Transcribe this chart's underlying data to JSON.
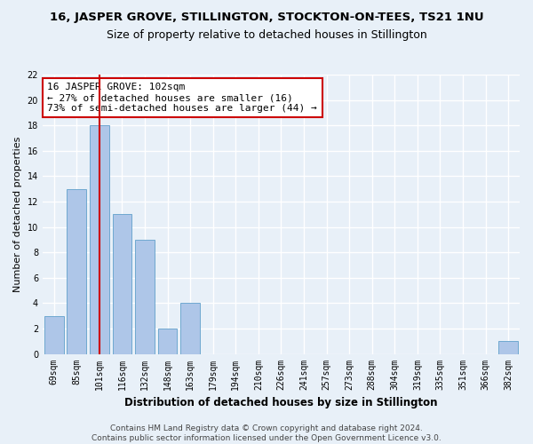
{
  "title": "16, JASPER GROVE, STILLINGTON, STOCKTON-ON-TEES, TS21 1NU",
  "subtitle": "Size of property relative to detached houses in Stillington",
  "xlabel": "Distribution of detached houses by size in Stillington",
  "ylabel": "Number of detached properties",
  "bar_color": "#aec6e8",
  "bar_edge_color": "#6fa8d0",
  "categories": [
    "69sqm",
    "85sqm",
    "101sqm",
    "116sqm",
    "132sqm",
    "148sqm",
    "163sqm",
    "179sqm",
    "194sqm",
    "210sqm",
    "226sqm",
    "241sqm",
    "257sqm",
    "273sqm",
    "288sqm",
    "304sqm",
    "319sqm",
    "335sqm",
    "351sqm",
    "366sqm",
    "382sqm"
  ],
  "values": [
    3,
    13,
    18,
    11,
    9,
    2,
    4,
    0,
    0,
    0,
    0,
    0,
    0,
    0,
    0,
    0,
    0,
    0,
    0,
    0,
    1
  ],
  "property_index": 2,
  "vline_color": "#cc0000",
  "annotation_text": "16 JASPER GROVE: 102sqm\n← 27% of detached houses are smaller (16)\n73% of semi-detached houses are larger (44) →",
  "annotation_box_color": "white",
  "annotation_box_edge_color": "#cc0000",
  "ylim": [
    0,
    22
  ],
  "yticks": [
    0,
    2,
    4,
    6,
    8,
    10,
    12,
    14,
    16,
    18,
    20,
    22
  ],
  "footer": "Contains HM Land Registry data © Crown copyright and database right 2024.\nContains public sector information licensed under the Open Government Licence v3.0.",
  "background_color": "#e8f0f8",
  "grid_color": "white",
  "title_fontsize": 9.5,
  "subtitle_fontsize": 9,
  "xlabel_fontsize": 8.5,
  "ylabel_fontsize": 8,
  "tick_fontsize": 7,
  "annotation_fontsize": 8,
  "footer_fontsize": 6.5
}
